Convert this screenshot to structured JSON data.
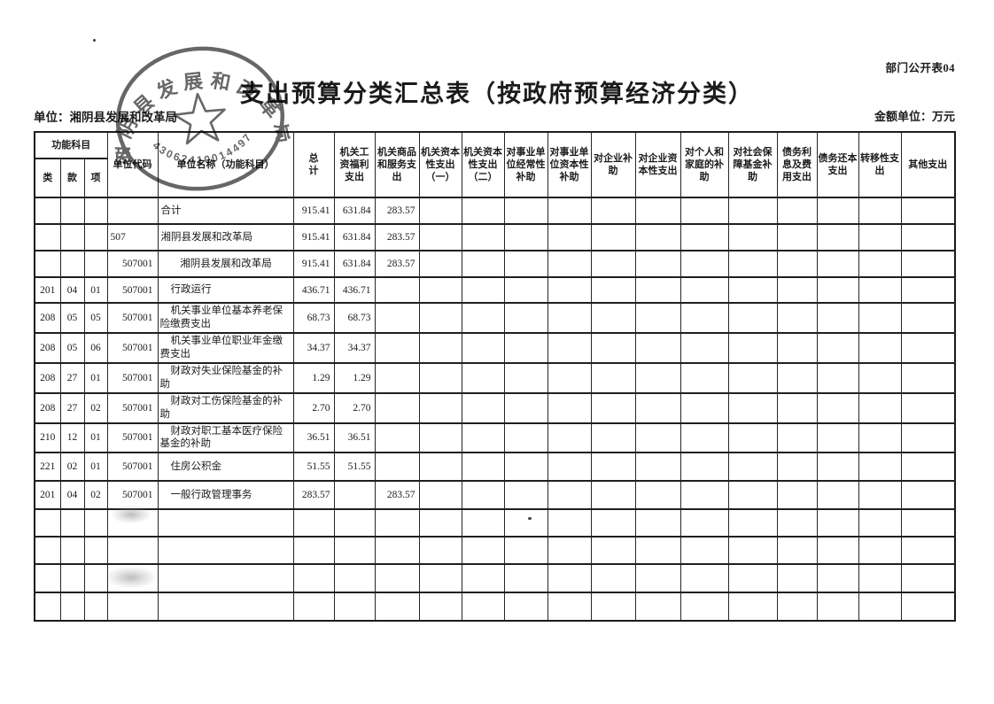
{
  "page": {
    "corner_label": "部门公开表04",
    "title": "支出预算分类汇总表（按政府预算经济分类）",
    "unit_label": "单位：湘阴县发展和改革局",
    "amount_unit_label": "金额单位：万元"
  },
  "stamp": {
    "org_text": "湘阴县发展和改革局",
    "code_text": "43062410014497",
    "color": "#454545"
  },
  "table": {
    "header": {
      "func_group": "功能科目",
      "func_cols": [
        "类",
        "款",
        "项"
      ],
      "unit_code": "单位代码",
      "unit_name": "单位名称（功能科目）",
      "total": "总　　计",
      "expense_cols": [
        "机关工资福利支出",
        "机关商品和服务支出",
        "机关资本性支出（一）",
        "机关资本性支出（二）",
        "对事业单位经常性补助",
        "对事业单位资本性补助",
        "对企业补助",
        "对企业资本性支出",
        "对个人和家庭的补助",
        "对社会保障基金补助",
        "债务利息及费用支出",
        "债务还本支出",
        "转移性支出",
        "其他支出"
      ]
    },
    "rows": [
      {
        "func": [
          "",
          "",
          ""
        ],
        "code": "",
        "code_style": "left",
        "name": "合计",
        "name_style": "plain",
        "cells": [
          "915.41",
          "631.84",
          "283.57",
          "",
          "",
          "",
          "",
          "",
          "",
          "",
          "",
          "",
          "",
          "",
          ""
        ]
      },
      {
        "func": [
          "",
          "",
          ""
        ],
        "code": "507",
        "code_style": "left",
        "name": "湘阴县发展和改革局",
        "name_style": "plain",
        "cells": [
          "915.41",
          "631.84",
          "283.57",
          "",
          "",
          "",
          "",
          "",
          "",
          "",
          "",
          "",
          "",
          "",
          ""
        ]
      },
      {
        "func": [
          "",
          "",
          ""
        ],
        "code": "507001",
        "code_style": "right",
        "name": "湘阴县发展和改革局",
        "name_style": "center",
        "cells": [
          "915.41",
          "631.84",
          "283.57",
          "",
          "",
          "",
          "",
          "",
          "",
          "",
          "",
          "",
          "",
          "",
          ""
        ]
      },
      {
        "func": [
          "201",
          "04",
          "01"
        ],
        "code": "507001",
        "code_style": "right",
        "name": "行政运行",
        "name_style": "indent",
        "cells": [
          "436.71",
          "436.71",
          "",
          "",
          "",
          "",
          "",
          "",
          "",
          "",
          "",
          "",
          "",
          "",
          ""
        ]
      },
      {
        "func": [
          "208",
          "05",
          "05"
        ],
        "code": "507001",
        "code_style": "right",
        "name": "机关事业单位基本养老保险缴费支出",
        "name_style": "indent",
        "cells": [
          "68.73",
          "68.73",
          "",
          "",
          "",
          "",
          "",
          "",
          "",
          "",
          "",
          "",
          "",
          "",
          ""
        ]
      },
      {
        "func": [
          "208",
          "05",
          "06"
        ],
        "code": "507001",
        "code_style": "right",
        "name": "机关事业单位职业年金缴费支出",
        "name_style": "indent",
        "cells": [
          "34.37",
          "34.37",
          "",
          "",
          "",
          "",
          "",
          "",
          "",
          "",
          "",
          "",
          "",
          "",
          ""
        ]
      },
      {
        "func": [
          "208",
          "27",
          "01"
        ],
        "code": "507001",
        "code_style": "right",
        "name": "财政对失业保险基金的补助",
        "name_style": "indent",
        "cells": [
          "1.29",
          "1.29",
          "",
          "",
          "",
          "",
          "",
          "",
          "",
          "",
          "",
          "",
          "",
          "",
          ""
        ]
      },
      {
        "func": [
          "208",
          "27",
          "02"
        ],
        "code": "507001",
        "code_style": "right",
        "name": "财政对工伤保险基金的补助",
        "name_style": "indent",
        "cells": [
          "2.70",
          "2.70",
          "",
          "",
          "",
          "",
          "",
          "",
          "",
          "",
          "",
          "",
          "",
          "",
          ""
        ]
      },
      {
        "func": [
          "210",
          "12",
          "01"
        ],
        "code": "507001",
        "code_style": "right",
        "name": "财政对职工基本医疗保险基金的补助",
        "name_style": "indent",
        "cells": [
          "36.51",
          "36.51",
          "",
          "",
          "",
          "",
          "",
          "",
          "",
          "",
          "",
          "",
          "",
          "",
          ""
        ]
      },
      {
        "func": [
          "221",
          "02",
          "01"
        ],
        "code": "507001",
        "code_style": "right",
        "name": "住房公积金",
        "name_style": "indent",
        "cells": [
          "51.55",
          "51.55",
          "",
          "",
          "",
          "",
          "",
          "",
          "",
          "",
          "",
          "",
          "",
          "",
          ""
        ]
      },
      {
        "func": [
          "201",
          "04",
          "02"
        ],
        "code": "507001",
        "code_style": "right",
        "name": "一般行政管理事务",
        "name_style": "indent",
        "cells": [
          "283.57",
          "",
          "283.57",
          "",
          "",
          "",
          "",
          "",
          "",
          "",
          "",
          "",
          "",
          "",
          ""
        ]
      },
      {
        "func": [
          "",
          "",
          ""
        ],
        "code": "",
        "code_style": "right",
        "name": "",
        "name_style": "plain",
        "cells": [
          "",
          "",
          "",
          "",
          "",
          "",
          "",
          "",
          "",
          "",
          "",
          "",
          "",
          "",
          ""
        ]
      },
      {
        "func": [
          "",
          "",
          ""
        ],
        "code": "",
        "code_style": "right",
        "name": "",
        "name_style": "plain",
        "cells": [
          "",
          "",
          "",
          "",
          "",
          "",
          "",
          "",
          "",
          "",
          "",
          "",
          "",
          "",
          ""
        ]
      },
      {
        "func": [
          "",
          "",
          ""
        ],
        "code": "",
        "code_style": "right",
        "name": "",
        "name_style": "plain",
        "cells": [
          "",
          "",
          "",
          "",
          "",
          "",
          "",
          "",
          "",
          "",
          "",
          "",
          "",
          "",
          ""
        ]
      },
      {
        "func": [
          "",
          "",
          ""
        ],
        "code": "",
        "code_style": "right",
        "name": "",
        "name_style": "plain",
        "cells": [
          "",
          "",
          "",
          "",
          "",
          "",
          "",
          "",
          "",
          "",
          "",
          "",
          "",
          "",
          ""
        ]
      }
    ]
  }
}
